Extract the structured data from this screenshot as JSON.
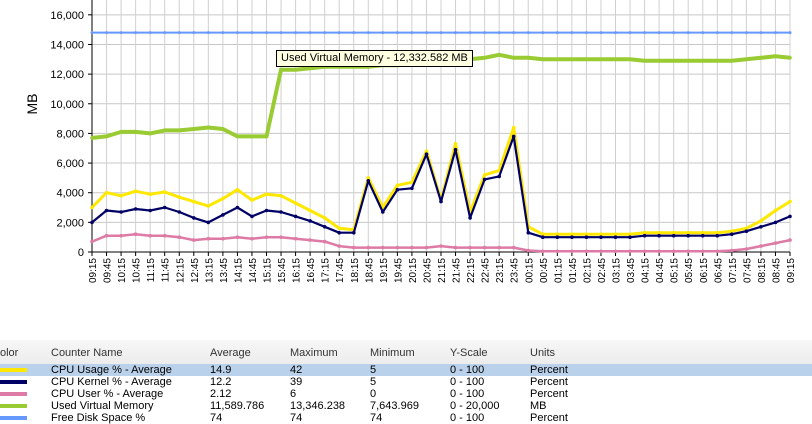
{
  "chart_data": {
    "type": "line",
    "ylabel": "MB",
    "ylim": [
      0,
      17000
    ],
    "yticks": [
      "0",
      "2,000",
      "4,000",
      "6,000",
      "8,000",
      "10,000",
      "12,000",
      "14,000",
      "16,000"
    ],
    "x": [
      "09:15",
      "09:45",
      "10:15",
      "10:45",
      "11:15",
      "11:45",
      "12:15",
      "12:45",
      "13:15",
      "13:45",
      "14:15",
      "14:45",
      "15:15",
      "15:45",
      "16:15",
      "16:45",
      "17:15",
      "17:45",
      "18:15",
      "18:45",
      "19:15",
      "19:45",
      "20:15",
      "20:45",
      "21:15",
      "21:45",
      "22:15",
      "22:45",
      "23:15",
      "23:45",
      "00:15",
      "00:45",
      "01:15",
      "01:45",
      "02:15",
      "02:45",
      "03:15",
      "03:45",
      "04:15",
      "04:45",
      "05:15",
      "05:45",
      "06:15",
      "06:45",
      "07:15",
      "07:45",
      "08:15",
      "08:45",
      "09:15"
    ],
    "grid": true,
    "series": [
      {
        "name": "CPU Usage % - Average",
        "color": "#ffe800",
        "values": [
          3000,
          4000,
          3800,
          4100,
          3900,
          4050,
          3700,
          3400,
          3100,
          3600,
          4200,
          3500,
          3900,
          3800,
          3300,
          2800,
          2300,
          1600,
          1500,
          5000,
          3000,
          4500,
          4700,
          6800,
          3500,
          7300,
          2700,
          5200,
          5500,
          8400,
          1700,
          1200,
          1200,
          1200,
          1200,
          1200,
          1200,
          1200,
          1300,
          1300,
          1300,
          1300,
          1300,
          1300,
          1400,
          1600,
          2100,
          2800,
          3400
        ]
      },
      {
        "name": "CPU Kernel % - Average",
        "color": "#000066",
        "values": [
          2000,
          2800,
          2700,
          2900,
          2800,
          3000,
          2700,
          2300,
          2000,
          2500,
          3000,
          2400,
          2800,
          2700,
          2400,
          2100,
          1700,
          1300,
          1300,
          4800,
          2700,
          4200,
          4300,
          6600,
          3400,
          6900,
          2300,
          4900,
          5100,
          7800,
          1300,
          1000,
          1000,
          1000,
          1000,
          1000,
          1000,
          1000,
          1100,
          1100,
          1100,
          1100,
          1100,
          1100,
          1200,
          1400,
          1700,
          2000,
          2400
        ]
      },
      {
        "name": "CPU User % - Average",
        "color": "#dd7aa6",
        "values": [
          700,
          1100,
          1100,
          1200,
          1100,
          1100,
          1000,
          800,
          900,
          900,
          1000,
          900,
          1000,
          1000,
          900,
          800,
          700,
          400,
          300,
          300,
          300,
          300,
          300,
          300,
          400,
          300,
          300,
          300,
          300,
          300,
          100,
          50,
          50,
          50,
          50,
          50,
          50,
          50,
          50,
          50,
          50,
          50,
          50,
          50,
          100,
          200,
          400,
          600,
          800
        ]
      },
      {
        "name": "Used Virtual Memory",
        "color": "#99cc33",
        "values": [
          7700,
          7800,
          8100,
          8100,
          8000,
          8200,
          8200,
          8300,
          8400,
          8300,
          7800,
          7800,
          7800,
          12300,
          12300,
          12400,
          12500,
          12500,
          12500,
          12500,
          12600,
          12600,
          12700,
          12900,
          13000,
          13000,
          13000,
          13100,
          13300,
          13100,
          13100,
          13000,
          13000,
          13000,
          13000,
          13000,
          13000,
          13000,
          12900,
          12900,
          12900,
          12900,
          12900,
          12900,
          12900,
          13000,
          13100,
          13200,
          13100
        ]
      },
      {
        "name": "Free Disk Space %",
        "color": "#6699ff",
        "values": [
          14800,
          14800,
          14800,
          14800,
          14800,
          14800,
          14800,
          14800,
          14800,
          14800,
          14800,
          14800,
          14800,
          14800,
          14800,
          14800,
          14800,
          14800,
          14800,
          14800,
          14800,
          14800,
          14800,
          14800,
          14800,
          14800,
          14800,
          14800,
          14800,
          14800,
          14800,
          14800,
          14800,
          14800,
          14800,
          14800,
          14800,
          14800,
          14800,
          14800,
          14800,
          14800,
          14800,
          14800,
          14800,
          14800,
          14800,
          14800,
          14800
        ]
      }
    ]
  },
  "tooltip": "Used Virtual Memory - 12,332.582 MB",
  "legend": {
    "headers": {
      "color": "olor",
      "name": "Counter Name",
      "average": "Average",
      "maximum": "Maximum",
      "minimum": "Minimum",
      "yscale": "Y-Scale",
      "units": "Units"
    },
    "rows": [
      {
        "name": "CPU Usage % - Average",
        "average": "14.9",
        "maximum": "42",
        "minimum": "5",
        "yscale": "0 - 100",
        "units": "Percent",
        "color": "#ffe800"
      },
      {
        "name": "CPU Kernel % - Average",
        "average": "12.2",
        "maximum": "39",
        "minimum": "5",
        "yscale": "0 - 100",
        "units": "Percent",
        "color": "#000066"
      },
      {
        "name": "CPU User % - Average",
        "average": "2.12",
        "maximum": "6",
        "minimum": "0",
        "yscale": "0 - 100",
        "units": "Percent",
        "color": "#dd7aa6"
      },
      {
        "name": "Used Virtual Memory",
        "average": "11,589.786",
        "maximum": "13,346.238",
        "minimum": "7,643.969",
        "yscale": "0 - 20,000",
        "units": "MB",
        "color": "#99cc33"
      },
      {
        "name": "Free Disk Space %",
        "average": "74",
        "maximum": "74",
        "minimum": "74",
        "yscale": "0 - 100",
        "units": "Percent",
        "color": "#6699ff"
      }
    ]
  }
}
